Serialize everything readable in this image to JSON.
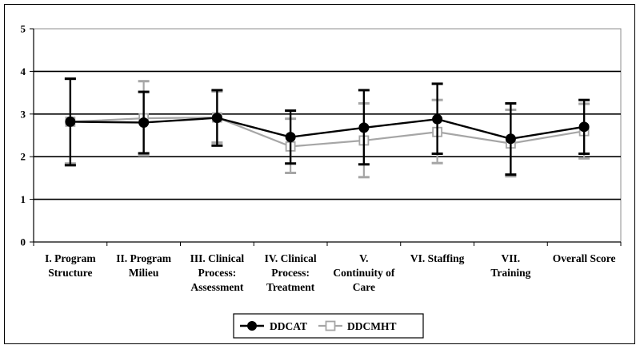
{
  "chart_data": {
    "type": "line",
    "title": "",
    "xlabel": "",
    "ylabel": "",
    "ylim": [
      0,
      5
    ],
    "yticks": [
      0,
      1,
      2,
      3,
      4,
      5
    ],
    "grid": "horizontal at 2, 3, 4",
    "legend_position": "bottom",
    "categories": [
      [
        "I. Program",
        "Structure"
      ],
      [
        "II. Program",
        "Milieu"
      ],
      [
        "III. Clinical",
        "Process:",
        "Assessment"
      ],
      [
        "IV. Clinical",
        "Process:",
        "Treatment"
      ],
      [
        "V.",
        "Continuity of",
        "Care"
      ],
      [
        "VI. Staffing"
      ],
      [
        "VII.",
        "Training"
      ],
      [
        "Overall Score"
      ]
    ],
    "series": [
      {
        "name": "DDCAT",
        "color": "#000000",
        "marker": "filled-circle",
        "values": [
          2.82,
          2.8,
          2.91,
          2.46,
          2.68,
          2.88,
          2.42,
          2.7
        ],
        "error_low": [
          1.8,
          2.08,
          2.26,
          1.84,
          1.82,
          2.07,
          1.58,
          2.07
        ],
        "error_high": [
          3.83,
          3.52,
          3.56,
          3.08,
          3.56,
          3.71,
          3.25,
          3.33
        ]
      },
      {
        "name": "DDCMHT",
        "color": "#a6a6a6",
        "marker": "open-square",
        "values": [
          2.82,
          2.9,
          2.92,
          2.24,
          2.38,
          2.58,
          2.31,
          2.6
        ],
        "error_low": [
          1.84,
          2.03,
          2.33,
          1.62,
          1.52,
          1.85,
          1.54,
          1.96
        ],
        "error_high": [
          3.82,
          3.77,
          3.53,
          2.89,
          3.25,
          3.33,
          3.1,
          3.24
        ]
      }
    ]
  }
}
